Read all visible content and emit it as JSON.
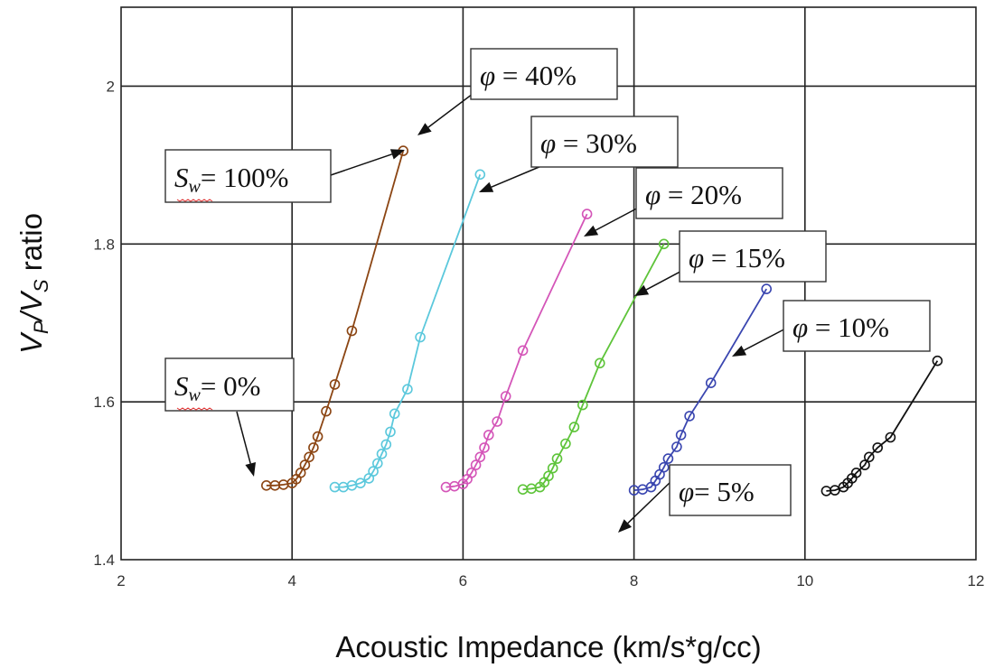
{
  "chart_data": {
    "type": "scatter",
    "title": "",
    "xlabel": "Acoustic Impedance (km/s*g/cc)",
    "ylabel_parts": {
      "v1": "V",
      "s1": "P",
      "mid": "/V",
      "s2": "S",
      "tail": " ratio"
    },
    "xlim": [
      2,
      12
    ],
    "ylim": [
      1.4,
      2.1
    ],
    "x_ticks": [
      2,
      4,
      6,
      8,
      10,
      12
    ],
    "y_ticks": [
      1.4,
      1.6,
      1.8,
      2
    ],
    "x_tick_labels": [
      "2",
      "4",
      "6",
      "8",
      "10",
      "12"
    ],
    "y_tick_labels": [
      "1.4",
      "1.6",
      "1.8",
      "2"
    ],
    "grid": true,
    "legend": "none",
    "series": [
      {
        "name": "φ = 40%",
        "color": "#8b4513",
        "x": [
          3.7,
          3.8,
          3.9,
          4.0,
          4.05,
          4.1,
          4.15,
          4.2,
          4.25,
          4.3,
          4.4,
          4.5,
          4.7,
          5.3
        ],
        "y": [
          1.494,
          1.494,
          1.495,
          1.497,
          1.502,
          1.51,
          1.52,
          1.53,
          1.542,
          1.556,
          1.588,
          1.622,
          1.69,
          1.918
        ]
      },
      {
        "name": "φ = 30%",
        "color": "#5bc8dc",
        "x": [
          4.5,
          4.6,
          4.7,
          4.8,
          4.9,
          4.95,
          5.0,
          5.05,
          5.1,
          5.15,
          5.2,
          5.35,
          5.5,
          6.2
        ],
        "y": [
          1.492,
          1.492,
          1.494,
          1.497,
          1.503,
          1.512,
          1.522,
          1.534,
          1.546,
          1.562,
          1.585,
          1.616,
          1.682,
          1.888
        ]
      },
      {
        "name": "φ = 20%",
        "color": "#d455b8",
        "x": [
          5.8,
          5.9,
          6.0,
          6.05,
          6.1,
          6.15,
          6.2,
          6.25,
          6.3,
          6.4,
          6.5,
          6.7,
          7.45
        ],
        "y": [
          1.492,
          1.493,
          1.496,
          1.502,
          1.51,
          1.52,
          1.53,
          1.542,
          1.558,
          1.575,
          1.607,
          1.665,
          1.838
        ]
      },
      {
        "name": "φ = 15%",
        "color": "#5ec43a",
        "x": [
          6.7,
          6.8,
          6.9,
          6.95,
          7.0,
          7.05,
          7.1,
          7.2,
          7.3,
          7.4,
          7.6,
          8.35
        ],
        "y": [
          1.489,
          1.49,
          1.492,
          1.498,
          1.506,
          1.516,
          1.528,
          1.547,
          1.568,
          1.596,
          1.649,
          1.8
        ]
      },
      {
        "name": "φ = 10%",
        "color": "#3a46b0",
        "x": [
          8.0,
          8.1,
          8.2,
          8.25,
          8.3,
          8.35,
          8.4,
          8.5,
          8.55,
          8.65,
          8.9,
          9.55
        ],
        "y": [
          1.488,
          1.489,
          1.492,
          1.5,
          1.508,
          1.517,
          1.528,
          1.543,
          1.558,
          1.582,
          1.624,
          1.743
        ]
      },
      {
        "name": "φ = 5%",
        "color": "#111111",
        "x": [
          10.25,
          10.35,
          10.45,
          10.5,
          10.55,
          10.6,
          10.7,
          10.75,
          10.85,
          11.0,
          11.55
        ],
        "y": [
          1.487,
          1.488,
          1.492,
          1.497,
          1.503,
          1.51,
          1.52,
          1.53,
          1.542,
          1.555,
          1.652
        ]
      }
    ],
    "annotations": [
      {
        "id": "phi-40",
        "symbol": "φ",
        "text": " = 40%"
      },
      {
        "id": "phi-30",
        "symbol": "φ",
        "text": " = 30%"
      },
      {
        "id": "phi-20",
        "symbol": "φ",
        "text": " = 20%"
      },
      {
        "id": "phi-15",
        "symbol": "φ",
        "text": " = 15%"
      },
      {
        "id": "phi-10",
        "symbol": "φ",
        "text": " = 10%"
      },
      {
        "id": "phi-5",
        "symbol": "φ",
        "text": "= 5%"
      },
      {
        "id": "sw-100",
        "symbol": "S",
        "sub": "w",
        "text": "= 100%"
      },
      {
        "id": "sw-0",
        "symbol": "S",
        "sub": "w",
        "text": "= 0%"
      }
    ]
  }
}
